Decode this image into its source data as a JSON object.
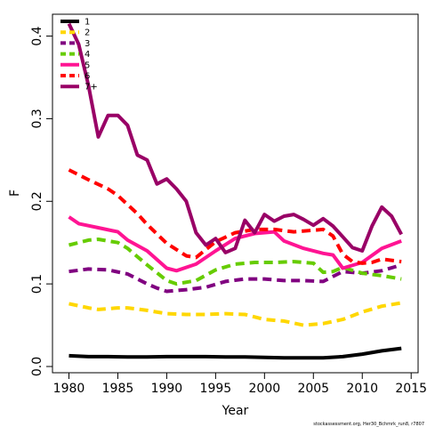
{
  "chart_data": {
    "type": "line",
    "title": "",
    "xlabel": "Year",
    "ylabel": "F",
    "xlim": [
      1979.5,
      2014.8
    ],
    "ylim": [
      0.0,
      0.42
    ],
    "x_ticks": [
      1980,
      1985,
      1990,
      1995,
      2000,
      2005,
      2010,
      2015
    ],
    "y_ticks": [
      0.0,
      0.1,
      0.2,
      0.3,
      0.4
    ],
    "y_tick_labels": [
      "0.0",
      "0.1",
      "0.2",
      "0.3",
      "0.4"
    ],
    "grid": false,
    "legend_position": "top-left",
    "series": [
      {
        "name": "1",
        "color": "#000000",
        "dash": "solid",
        "x": [
          1980,
          1982,
          1984,
          1986,
          1988,
          1990,
          1992,
          1994,
          1996,
          1998,
          2000,
          2002,
          2004,
          2006,
          2008,
          2010,
          2012,
          2014
        ],
        "values": [
          0.013,
          0.012,
          0.012,
          0.0115,
          0.0115,
          0.012,
          0.012,
          0.012,
          0.0115,
          0.0115,
          0.011,
          0.0105,
          0.0105,
          0.0105,
          0.012,
          0.015,
          0.019,
          0.022
        ]
      },
      {
        "name": "2",
        "color": "#FFD700",
        "dash": "dashed",
        "x": [
          1980,
          1982,
          1983,
          1985,
          1986,
          1988,
          1990,
          1992,
          1994,
          1996,
          1998,
          2000,
          2002,
          2004,
          2006,
          2008,
          2010,
          2012,
          2014
        ],
        "values": [
          0.076,
          0.071,
          0.069,
          0.071,
          0.071,
          0.068,
          0.064,
          0.063,
          0.063,
          0.064,
          0.063,
          0.057,
          0.055,
          0.05,
          0.052,
          0.057,
          0.066,
          0.073,
          0.077
        ]
      },
      {
        "name": "3",
        "color": "#800080",
        "dash": "dashed",
        "x": [
          1980,
          1982,
          1984,
          1986,
          1988,
          1989,
          1990,
          1992,
          1994,
          1996,
          1998,
          2000,
          2002,
          2004,
          2006,
          2008,
          2010,
          2012,
          2014
        ],
        "values": [
          0.115,
          0.118,
          0.117,
          0.112,
          0.1,
          0.095,
          0.091,
          0.093,
          0.096,
          0.103,
          0.106,
          0.106,
          0.104,
          0.104,
          0.103,
          0.115,
          0.113,
          0.116,
          0.123
        ]
      },
      {
        "name": "4",
        "color": "#66CC00",
        "dash": "dashed",
        "x": [
          1980,
          1982,
          1983,
          1985,
          1986,
          1988,
          1990,
          1991,
          1993,
          1995,
          1997,
          1999,
          2001,
          2003,
          2005,
          2006,
          2007,
          2008,
          2010,
          2012,
          2014
        ],
        "values": [
          0.147,
          0.153,
          0.154,
          0.15,
          0.143,
          0.123,
          0.104,
          0.1,
          0.104,
          0.117,
          0.124,
          0.126,
          0.126,
          0.127,
          0.125,
          0.114,
          0.115,
          0.12,
          0.113,
          0.11,
          0.106
        ]
      },
      {
        "name": "5",
        "color": "#FF1493",
        "dash": "solid",
        "x": [
          1980,
          1981,
          1983,
          1985,
          1986,
          1988,
          1990,
          1991,
          1993,
          1995,
          1997,
          1999,
          2001,
          2002,
          2004,
          2006,
          2007,
          2008,
          2010,
          2012,
          2014
        ],
        "values": [
          0.181,
          0.173,
          0.168,
          0.163,
          0.153,
          0.14,
          0.119,
          0.116,
          0.124,
          0.14,
          0.155,
          0.161,
          0.163,
          0.152,
          0.143,
          0.137,
          0.135,
          0.119,
          0.126,
          0.143,
          0.152
        ]
      },
      {
        "name": "6",
        "color": "#FF0000",
        "dash": "dashed",
        "x": [
          1980,
          1982,
          1984,
          1985,
          1987,
          1988,
          1990,
          1992,
          1993,
          1995,
          1997,
          1999,
          2001,
          2003,
          2005,
          2006,
          2007,
          2008,
          2009,
          2010,
          2011,
          2012,
          2014
        ],
        "values": [
          0.238,
          0.226,
          0.215,
          0.207,
          0.185,
          0.172,
          0.149,
          0.134,
          0.132,
          0.151,
          0.162,
          0.166,
          0.166,
          0.163,
          0.165,
          0.166,
          0.158,
          0.136,
          0.127,
          0.125,
          0.126,
          0.13,
          0.127
        ]
      },
      {
        "name": "7+",
        "color": "#990066",
        "dash": "solid",
        "x": [
          1980,
          1981,
          1982,
          1983,
          1984,
          1985,
          1986,
          1987,
          1988,
          1989,
          1990,
          1991,
          1992,
          1993,
          1994,
          1995,
          1996,
          1997,
          1998,
          1999,
          2000,
          2001,
          2002,
          2003,
          2004,
          2005,
          2006,
          2007,
          2008,
          2009,
          2010,
          2011,
          2012,
          2013,
          2014
        ],
        "values": [
          0.415,
          0.39,
          0.34,
          0.278,
          0.304,
          0.304,
          0.292,
          0.256,
          0.25,
          0.221,
          0.227,
          0.215,
          0.2,
          0.162,
          0.147,
          0.155,
          0.138,
          0.143,
          0.177,
          0.162,
          0.184,
          0.176,
          0.182,
          0.184,
          0.178,
          0.171,
          0.179,
          0.17,
          0.157,
          0.144,
          0.14,
          0.17,
          0.193,
          0.182,
          0.16
        ]
      }
    ]
  },
  "credit": "stockassessment.org, Her30_Bchmrk_run8, r7807"
}
